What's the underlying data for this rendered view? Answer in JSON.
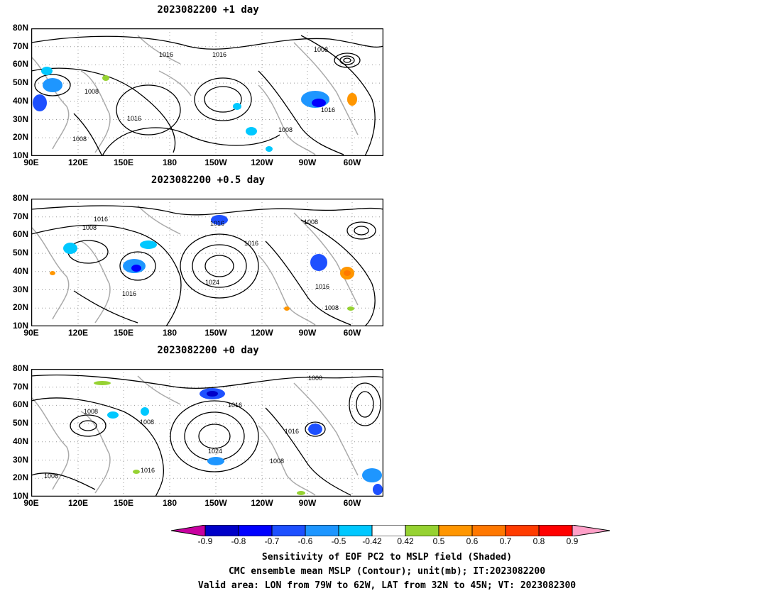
{
  "panels": [
    {
      "title": "2023082200 +1 day",
      "contour_labels": [
        "1016",
        "1016",
        "1008",
        "1008",
        "1016",
        "1008",
        "1016",
        "1008"
      ]
    },
    {
      "title": "2023082200 +0.5 day",
      "contour_labels": [
        "1016",
        "1008",
        "1016",
        "1016",
        "1008",
        "1024",
        "1016",
        "1016",
        "1008"
      ]
    },
    {
      "title": "2023082200 +0 day",
      "contour_labels": [
        "1008",
        "1008",
        "1016",
        "1000",
        "1024",
        "1016",
        "1016",
        "1008",
        "1008"
      ]
    }
  ],
  "lat_labels": [
    "80N",
    "70N",
    "60N",
    "50N",
    "40N",
    "30N",
    "20N",
    "10N"
  ],
  "lon_labels": [
    "90E",
    "120E",
    "150E",
    "180",
    "150W",
    "120W",
    "90W",
    "60W"
  ],
  "colorbar": {
    "ticks": [
      "-0.9",
      "-0.8",
      "-0.7",
      "-0.6",
      "-0.5",
      "-0.42",
      "0.42",
      "0.5",
      "0.6",
      "0.7",
      "0.8",
      "0.9"
    ],
    "colors": [
      "#c800a0",
      "#0000c8",
      "#0000ff",
      "#1e50ff",
      "#1e96ff",
      "#00c8ff",
      "#ffffff",
      "#96d232",
      "#ff9600",
      "#ff7800",
      "#ff3c00",
      "#ff0000",
      "#ffa0c8"
    ]
  },
  "caption": {
    "line1": "Sensitivity of EOF PC2 to MSLP field (Shaded)",
    "line2": "CMC ensemble mean MSLP (Contour); unit(mb); IT:2023082200",
    "line3": "Valid area: LON from 79W to 62W, LAT from 32N to 45N; VT: 2023082300"
  }
}
